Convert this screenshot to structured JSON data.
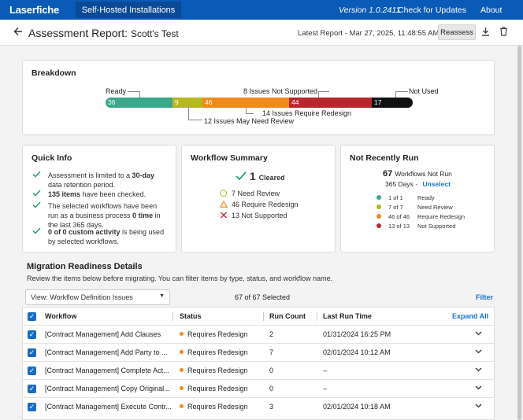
{
  "topnav": {
    "logo": "Laserfiche",
    "tab": "Self-Hosted Installations",
    "version": "Version 1.0.2411",
    "updates": "Check for Updates",
    "about": "About"
  },
  "header": {
    "title": "Assessment Report:",
    "subtitle": "Scott's Test",
    "latest": "Latest Report - Mar 27, 2025, 11:48:55 AM",
    "reassess": "Reassess"
  },
  "breakdown": {
    "title": "Breakdown",
    "segments": [
      {
        "value": "36",
        "color": "#3aa88a"
      },
      {
        "value": "9",
        "color": "#b5b81e"
      },
      {
        "value": "46",
        "color": "#f08a1c"
      },
      {
        "value": "44",
        "color": "#b7272e"
      },
      {
        "value": "17",
        "color": "#111111"
      }
    ],
    "labels": {
      "ready": "Ready",
      "not_supported": "8 Issues Not Supported",
      "not_used": "Not Used",
      "require_redesign": "14 Issues Require Redesign",
      "need_review": "12 Issues May Need Review"
    }
  },
  "quick_info": {
    "title": "Quick Info",
    "items": [
      {
        "pre": "Assessment is limited to a ",
        "bold": "30-day",
        "post": " data retention period."
      },
      {
        "pre": "",
        "bold": "135 items",
        "post": " have been checked."
      },
      {
        "pre": "The selected workflows have been run as a business process ",
        "bold": "0 time",
        "post": " in the last 365 days."
      },
      {
        "pre": "",
        "bold": "0 of 0 custom activity",
        "post": " is being used by selected workflows."
      }
    ]
  },
  "workflow_summary": {
    "title": "Workflow Summary",
    "cleared_count": "1",
    "cleared_label": "Cleared",
    "review": "7 Need Review",
    "redesign": "46 Require Redesign",
    "not_supported": "13 Not Supported",
    "colors": {
      "cleared": "#2a9d6a",
      "review": "#b5b81e",
      "redesign": "#f08a1c",
      "not_supported": "#b7272e"
    }
  },
  "not_recently_run": {
    "title": "Not Recently Run",
    "count": "67",
    "count_label": "Workflows Not Run",
    "days": "365 Days -",
    "unselect": "Unselect",
    "rows": [
      {
        "color": "#3aa88a",
        "frac": "1 of 1",
        "label": "Ready"
      },
      {
        "color": "#b5b81e",
        "frac": "7 of 7",
        "label": "Need Review"
      },
      {
        "color": "#f08a1c",
        "frac": "46 of 46",
        "label": "Require Redesign"
      },
      {
        "color": "#b7272e",
        "frac": "13 of 13",
        "label": "Not Supported"
      }
    ]
  },
  "migration": {
    "title": "Migration Readiness Details",
    "subtitle": "Review the items below before migrating. You can filter items by type, status, and workflow name.",
    "view": "View: Workflow Definition Issues",
    "selected": "67 of 67 Selected",
    "filter": "Filter",
    "columns": {
      "workflow": "Workflow",
      "status": "Status",
      "run_count": "Run Count",
      "last_run": "Last Run Time",
      "expand": "Expand All"
    },
    "rows": [
      {
        "workflow": "[Contract Management] Add Clauses",
        "status": "Requires Redesign",
        "run_count": "2",
        "last_run": "01/31/2024 16:25 PM"
      },
      {
        "workflow": "[Contract Management] Add Party to ...",
        "status": "Requires Redesign",
        "run_count": "7",
        "last_run": "02/01/2024 10:12 AM"
      },
      {
        "workflow": "[Contract Management] Complete Act...",
        "status": "Requires Redesign",
        "run_count": "0",
        "last_run": "–"
      },
      {
        "workflow": "[Contract Management] Copy Original...",
        "status": "Requires Redesign",
        "run_count": "0",
        "last_run": "–"
      },
      {
        "workflow": "[Contract Management] Execute Contr...",
        "status": "Requires Redesign",
        "run_count": "3",
        "last_run": "02/01/2024 10:18 AM"
      }
    ]
  }
}
